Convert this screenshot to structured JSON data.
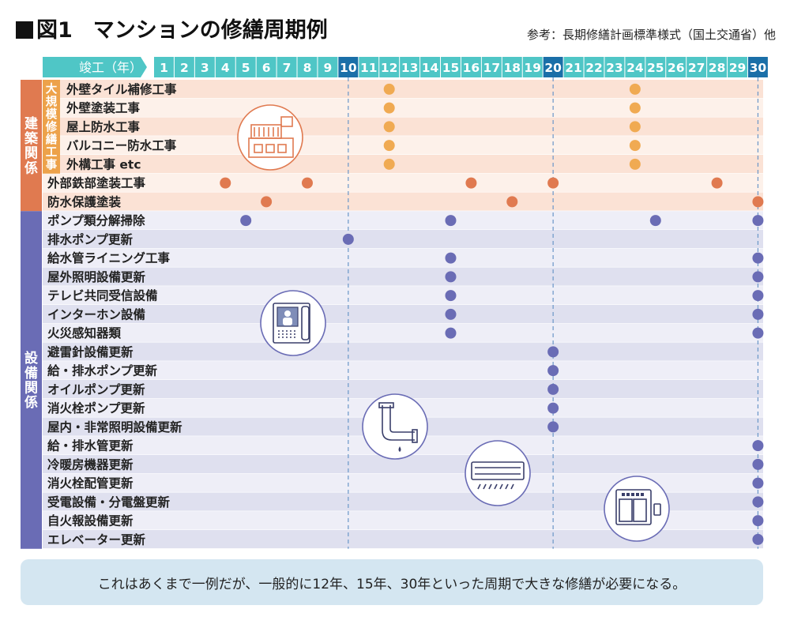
{
  "title": {
    "marker": "■",
    "figure": "図1",
    "text": "マンションの修繕周期例"
  },
  "source": "参考：長期修繕計画標準様式（国土交通省）他",
  "note": "これはあくまで一例だが、一般的に12年、15年、30年といった周期で大きな修繕が必要になる。",
  "colors": {
    "header": "#4fc6c6",
    "header_highlight": "#1a6fa8",
    "building_side": "#e07a50",
    "building_subgroup": "#eda24a",
    "facility_side": "#6a6cb5",
    "dot_orange_light": "#f0aa52",
    "dot_orange_dark": "#e07a50",
    "dot_purple": "#6a6cb5",
    "row_building_a": "#fbe2d5",
    "row_building_b": "#fdf1ea",
    "row_facility_a": "#dfe0ef",
    "row_facility_b": "#eeeef7"
  },
  "chart_data": {
    "type": "table",
    "header_label": "竣工（年）",
    "years": [
      "1",
      "2",
      "3",
      "4",
      "5",
      "6",
      "7",
      "8",
      "9",
      "10",
      "11",
      "12",
      "13",
      "14",
      "15",
      "16",
      "17",
      "18",
      "19",
      "20",
      "21",
      "22",
      "23",
      "24",
      "25",
      "26",
      "27",
      "28",
      "29",
      "30"
    ],
    "highlight_years": [
      10,
      20,
      30
    ],
    "groups": [
      {
        "name": "建築関係",
        "color": "building",
        "subgroups": [
          {
            "name": "大規模修繕工事",
            "rows": [
              0,
              1,
              2,
              3,
              4
            ]
          }
        ]
      },
      {
        "name": "設備関係",
        "color": "facility"
      }
    ],
    "rows": [
      {
        "label": "外壁タイル補修工事",
        "group": "building",
        "sub": true,
        "dot": "orange_light",
        "years": [
          12,
          24
        ]
      },
      {
        "label": "外壁塗装工事",
        "group": "building",
        "sub": true,
        "dot": "orange_light",
        "years": [
          12,
          24
        ]
      },
      {
        "label": "屋上防水工事",
        "group": "building",
        "sub": true,
        "dot": "orange_light",
        "years": [
          12,
          24
        ]
      },
      {
        "label": "バルコニー防水工事",
        "group": "building",
        "sub": true,
        "dot": "orange_light",
        "years": [
          12,
          24
        ]
      },
      {
        "label": "外構工事 etc",
        "group": "building",
        "sub": true,
        "dot": "orange_light",
        "years": [
          12,
          24
        ]
      },
      {
        "label": "外部鉄部塗装工事",
        "group": "building",
        "sub": false,
        "dot": "orange_dark",
        "years": [
          4,
          8,
          16,
          20,
          28
        ]
      },
      {
        "label": "防水保護塗装",
        "group": "building",
        "sub": false,
        "dot": "orange_dark",
        "years": [
          6,
          18,
          30
        ]
      },
      {
        "label": "ポンプ類分解掃除",
        "group": "facility",
        "dot": "purple",
        "years": [
          5,
          15,
          25,
          30
        ]
      },
      {
        "label": "排水ポンプ更新",
        "group": "facility",
        "dot": "purple",
        "years": [
          10
        ]
      },
      {
        "label": "給水管ライニング工事",
        "group": "facility",
        "dot": "purple",
        "years": [
          15,
          30
        ]
      },
      {
        "label": "屋外照明設備更新",
        "group": "facility",
        "dot": "purple",
        "years": [
          15,
          30
        ]
      },
      {
        "label": "テレビ共同受信設備",
        "group": "facility",
        "dot": "purple",
        "years": [
          15,
          30
        ]
      },
      {
        "label": "インターホン設備",
        "group": "facility",
        "dot": "purple",
        "years": [
          15,
          30
        ]
      },
      {
        "label": "火災感知器類",
        "group": "facility",
        "dot": "purple",
        "years": [
          15,
          30
        ]
      },
      {
        "label": "避雷針設備更新",
        "group": "facility",
        "dot": "purple",
        "years": [
          20
        ]
      },
      {
        "label": "給・排水ポンプ更新",
        "group": "facility",
        "dot": "purple",
        "years": [
          20
        ]
      },
      {
        "label": "オイルポンプ更新",
        "group": "facility",
        "dot": "purple",
        "years": [
          20
        ]
      },
      {
        "label": "消火栓ポンプ更新",
        "group": "facility",
        "dot": "purple",
        "years": [
          20
        ]
      },
      {
        "label": "屋内・非常照明設備更新",
        "group": "facility",
        "dot": "purple",
        "years": [
          20
        ]
      },
      {
        "label": "給・排水管更新",
        "group": "facility",
        "dot": "purple",
        "years": [
          30
        ]
      },
      {
        "label": "冷暖房機器更新",
        "group": "facility",
        "dot": "purple",
        "years": [
          30
        ]
      },
      {
        "label": "消火栓配管更新",
        "group": "facility",
        "dot": "purple",
        "years": [
          30
        ]
      },
      {
        "label": "受電設備・分電盤更新",
        "group": "facility",
        "dot": "purple",
        "years": [
          30
        ]
      },
      {
        "label": "自火報設備更新",
        "group": "facility",
        "dot": "purple",
        "years": [
          30
        ]
      },
      {
        "label": "エレベーター更新",
        "group": "facility",
        "dot": "purple",
        "years": [
          30
        ]
      }
    ],
    "icons": [
      "building-icon",
      "intercom-icon",
      "pipe-icon",
      "air-conditioner-icon",
      "elevator-icon"
    ]
  }
}
